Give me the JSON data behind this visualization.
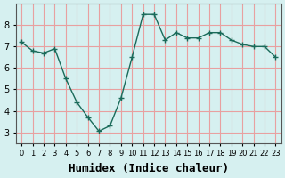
{
  "x": [
    0,
    1,
    2,
    3,
    4,
    5,
    6,
    7,
    8,
    9,
    10,
    11,
    12,
    13,
    14,
    15,
    16,
    17,
    18,
    19,
    20,
    21,
    22,
    23
  ],
  "y": [
    7.2,
    6.8,
    6.7,
    6.9,
    5.5,
    4.4,
    3.7,
    3.05,
    3.3,
    4.6,
    6.5,
    8.5,
    8.5,
    7.3,
    7.65,
    7.4,
    7.4,
    7.65,
    7.65,
    7.3,
    7.1,
    7.0,
    7.0,
    6.5
  ],
  "line_color": "#1a6b5a",
  "marker": "+",
  "bg_color": "#d6f0f0",
  "grid_color": "#e8a0a0",
  "xlabel": "Humidex (Indice chaleur)",
  "xlabel_fontsize": 9,
  "tick_fontsize": 7,
  "ylim": [
    2.5,
    9.0
  ],
  "xlim": [
    -0.5,
    23.5
  ],
  "yticks": [
    3,
    4,
    5,
    6,
    7,
    8
  ],
  "xtick_labels": [
    "0",
    "1",
    "2",
    "3",
    "4",
    "5",
    "6",
    "7",
    "8",
    "9",
    "10",
    "11",
    "12",
    "13",
    "14",
    "15",
    "16",
    "17",
    "18",
    "19",
    "20",
    "21",
    "22",
    "23"
  ]
}
